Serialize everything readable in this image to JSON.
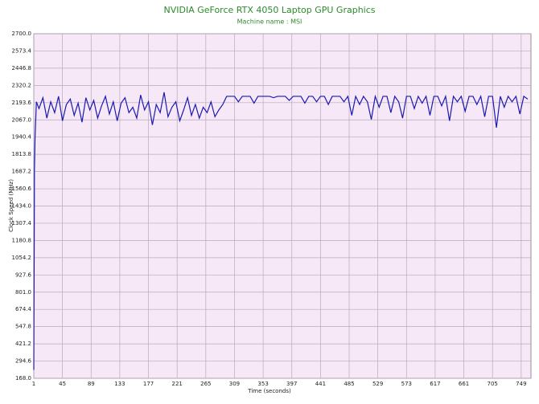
{
  "chart_data": {
    "type": "line",
    "title": "NVIDIA GeForce RTX 4050 Laptop GPU Graphics",
    "subtitle": "Machine name : MSI",
    "x_label": "Time (seconds)",
    "y_label": "Clock Speed (MHz)",
    "color": "#1a1ab0",
    "grid": true,
    "xlim": [
      1,
      764
    ],
    "xticks": [
      1,
      45,
      89,
      133,
      177,
      221,
      265,
      309,
      353,
      397,
      441,
      485,
      529,
      573,
      617,
      661,
      705,
      749
    ],
    "ylim": [
      168,
      2700
    ],
    "yticks": [
      {
        "value": 168,
        "label": "168.0"
      },
      {
        "value": 294.6,
        "label": "294.6"
      },
      {
        "value": 421.2,
        "label": "421.2"
      },
      {
        "value": 547.8,
        "label": "547.8"
      },
      {
        "value": 674.4,
        "label": "674.4"
      },
      {
        "value": 801,
        "label": "801.0"
      },
      {
        "value": 927.6,
        "label": "927.6"
      },
      {
        "value": 1054.2,
        "label": "1054.2"
      },
      {
        "value": 1180.8,
        "label": "1180.8"
      },
      {
        "value": 1307.4,
        "label": "1307.4"
      },
      {
        "value": 1434,
        "label": "1434.0"
      },
      {
        "value": 1560.6,
        "label": "1560.6"
      },
      {
        "value": 1687.2,
        "label": "1687.2"
      },
      {
        "value": 1813.8,
        "label": "1813.8"
      },
      {
        "value": 1940.4,
        "label": "1940.4"
      },
      {
        "value": 2067,
        "label": "2067.0"
      },
      {
        "value": 2193.6,
        "label": "2193.6"
      },
      {
        "value": 2320.2,
        "label": "2320.2"
      },
      {
        "value": 2446.8,
        "label": "2446.8"
      },
      {
        "value": 2573.4,
        "label": "2573.4"
      },
      {
        "value": 2700,
        "label": "2700.0"
      }
    ],
    "x": [
      1,
      2,
      3,
      5,
      9,
      15,
      21,
      27,
      33,
      39,
      45,
      51,
      57,
      63,
      69,
      75,
      81,
      87,
      93,
      99,
      105,
      111,
      117,
      123,
      129,
      135,
      141,
      147,
      153,
      159,
      165,
      171,
      177,
      183,
      189,
      195,
      201,
      207,
      213,
      219,
      225,
      231,
      237,
      243,
      249,
      255,
      261,
      267,
      273,
      279,
      285,
      291,
      297,
      303,
      309,
      315,
      321,
      327,
      333,
      339,
      345,
      351,
      357,
      363,
      369,
      375,
      381,
      387,
      393,
      399,
      405,
      411,
      417,
      423,
      429,
      435,
      441,
      447,
      453,
      459,
      465,
      471,
      477,
      483,
      489,
      495,
      501,
      507,
      513,
      519,
      525,
      531,
      537,
      543,
      549,
      555,
      561,
      567,
      573,
      579,
      585,
      591,
      597,
      603,
      609,
      615,
      621,
      627,
      633,
      639,
      645,
      651,
      657,
      663,
      669,
      675,
      681,
      687,
      693,
      699,
      705,
      711,
      717,
      723,
      729,
      735,
      741,
      747,
      753,
      759
    ],
    "values": [
      230,
      1700,
      1950,
      2200,
      2150,
      2230,
      2080,
      2200,
      2120,
      2240,
      2060,
      2180,
      2220,
      2100,
      2190,
      2050,
      2230,
      2140,
      2210,
      2080,
      2170,
      2240,
      2110,
      2200,
      2060,
      2190,
      2230,
      2120,
      2160,
      2080,
      2250,
      2140,
      2200,
      2030,
      2180,
      2120,
      2270,
      2090,
      2160,
      2200,
      2060,
      2140,
      2230,
      2100,
      2180,
      2080,
      2160,
      2120,
      2200,
      2090,
      2140,
      2180,
      2240,
      2240,
      2240,
      2200,
      2240,
      2240,
      2240,
      2190,
      2240,
      2240,
      2240,
      2240,
      2230,
      2240,
      2240,
      2240,
      2210,
      2240,
      2240,
      2240,
      2190,
      2240,
      2240,
      2200,
      2240,
      2240,
      2180,
      2240,
      2240,
      2240,
      2200,
      2240,
      2100,
      2240,
      2180,
      2240,
      2200,
      2070,
      2240,
      2160,
      2240,
      2240,
      2120,
      2240,
      2200,
      2080,
      2240,
      2240,
      2150,
      2240,
      2190,
      2240,
      2100,
      2240,
      2240,
      2170,
      2240,
      2060,
      2240,
      2200,
      2240,
      2130,
      2240,
      2240,
      2180,
      2240,
      2090,
      2240,
      2240,
      2010,
      2240,
      2160,
      2240,
      2200,
      2240,
      2110,
      2240,
      2220
    ]
  }
}
